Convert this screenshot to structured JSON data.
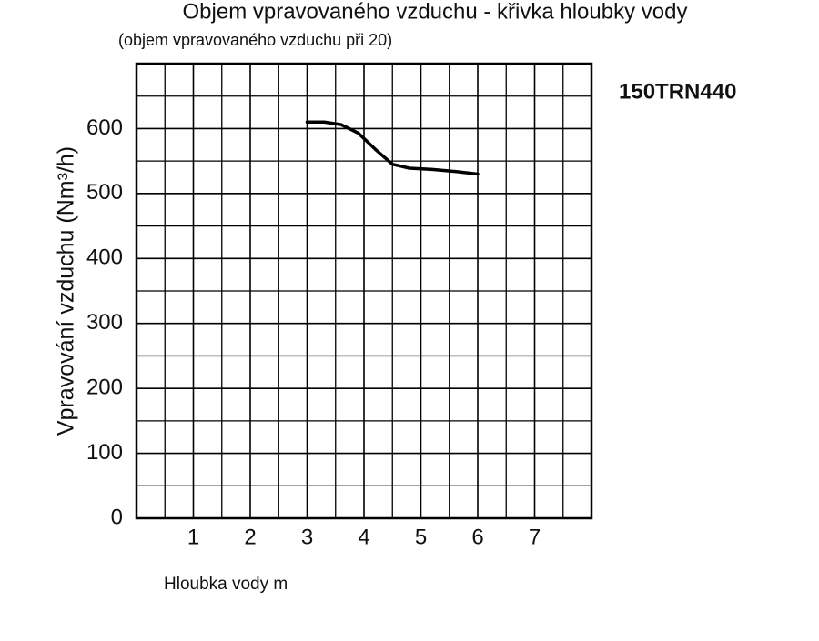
{
  "chart_data": {
    "type": "line",
    "title": "Objem vpravovaného vzduchu - křivka hloubky vody",
    "subtitle": "(objem vpravovaného vzduchu při 20)",
    "annotation": "150TRN440",
    "x_label": "Hloubka vody m",
    "y_label": "Vpravování vzduchu (Nm³/h)",
    "xlim": [
      0,
      8
    ],
    "ylim": [
      0,
      700
    ],
    "xticks": [
      1,
      2,
      3,
      4,
      5,
      6,
      7
    ],
    "yticks": [
      0,
      100,
      200,
      300,
      400,
      500,
      600
    ],
    "minor_xticks": [
      0.5,
      1.5,
      2.5,
      3.5,
      4.5,
      5.5,
      6.5,
      7.5
    ],
    "minor_yticks": [
      50,
      150,
      250,
      350,
      450,
      550,
      650
    ],
    "grid": true,
    "series": [
      {
        "name": "150TRN440",
        "color": "#000000",
        "x": [
          3,
          3.3,
          3.6,
          3.9,
          4.2,
          4.5,
          4.8,
          5.2,
          5.6,
          6
        ],
        "values": [
          610,
          610,
          606,
          593,
          568,
          545,
          539,
          537,
          534,
          530
        ]
      }
    ]
  }
}
